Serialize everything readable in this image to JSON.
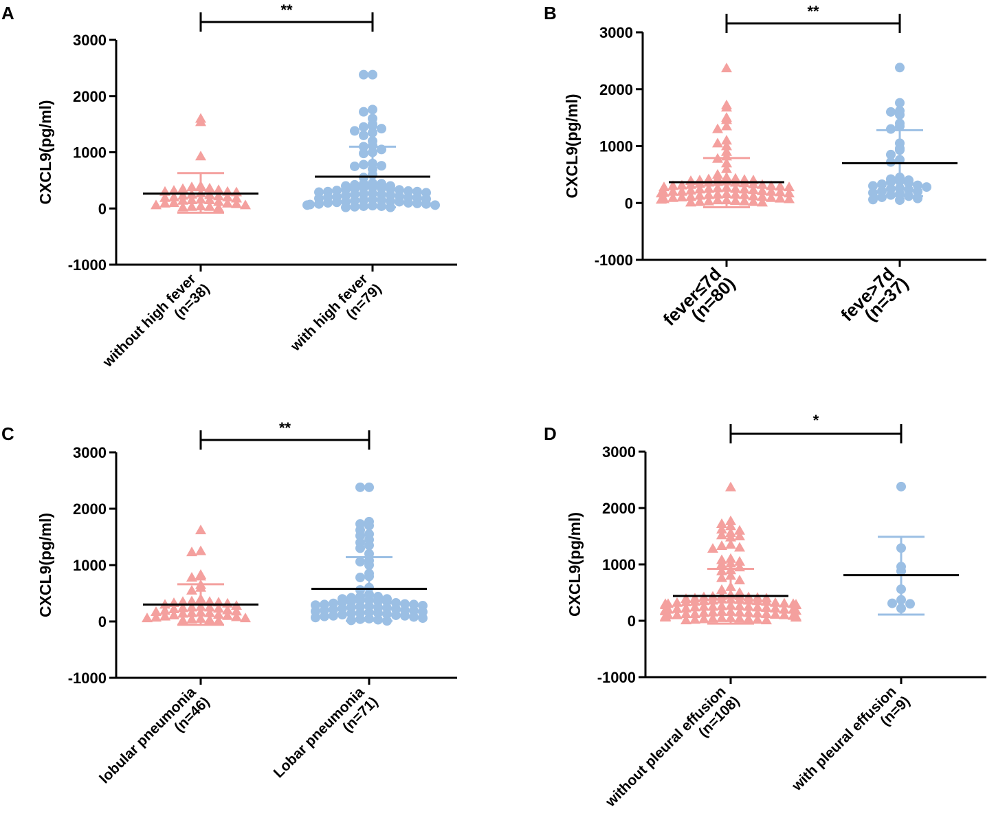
{
  "chart_data": [
    {
      "panel": "A",
      "type": "scatter",
      "ylabel": "CXCL9(pg/ml)",
      "ylim": [
        -1000,
        3000
      ],
      "yticks": [
        3000,
        2000,
        1000,
        0,
        -1000
      ],
      "groups": [
        {
          "name": "without high fever",
          "n_label": "(n=38)",
          "marker": "triangle",
          "color": "#f4a09e",
          "mean": 265,
          "sd_upper": 630,
          "sd_lower": -75,
          "points": [
            1600,
            1540,
            930,
            400,
            380,
            360,
            330,
            320,
            300,
            290,
            270,
            250,
            240,
            230,
            220,
            200,
            190,
            180,
            160,
            150,
            140,
            120,
            100,
            90,
            80,
            60,
            40,
            30,
            20,
            10,
            380,
            350,
            300,
            200,
            150,
            90,
            60,
            30
          ]
        },
        {
          "name": "with high fever",
          "n_label": "(n=79)",
          "marker": "circle",
          "color": "#9bbfe4",
          "mean": 565,
          "sd_upper": 1100,
          "sd_lower": 20,
          "points": [
            2380,
            2380,
            1760,
            1720,
            1600,
            1500,
            1470,
            1450,
            1420,
            1380,
            1350,
            1300,
            1200,
            1120,
            1100,
            1050,
            1000,
            980,
            800,
            780,
            760,
            750,
            700,
            600,
            550,
            450,
            440,
            420,
            400,
            380,
            370,
            360,
            350,
            340,
            330,
            320,
            310,
            300,
            290,
            280,
            270,
            260,
            250,
            240,
            230,
            220,
            210,
            200,
            190,
            180,
            170,
            160,
            150,
            140,
            130,
            120,
            110,
            100,
            90,
            80,
            70,
            60,
            50,
            40,
            30,
            20,
            440,
            400,
            350,
            300,
            250,
            200,
            150,
            120,
            100,
            80,
            60,
            40,
            20
          ]
        }
      ],
      "significance": "**"
    },
    {
      "panel": "B",
      "type": "scatter",
      "ylabel": "CXCL9(pg/ml)",
      "ylim": [
        -1000,
        3000
      ],
      "yticks": [
        3000,
        2000,
        1000,
        0,
        -1000
      ],
      "groups": [
        {
          "name": "fever≤7d",
          "n_label": "(n=80)",
          "marker": "triangle",
          "color": "#f4a09e",
          "mean": 365,
          "sd_upper": 790,
          "sd_lower": -75,
          "points": [
            2370,
            1720,
            1680,
            1500,
            1460,
            1350,
            1300,
            1100,
            1050,
            1000,
            900,
            820,
            780,
            700,
            600,
            500,
            450,
            430,
            420,
            410,
            400,
            390,
            380,
            370,
            360,
            350,
            340,
            330,
            320,
            310,
            300,
            290,
            280,
            270,
            260,
            250,
            240,
            230,
            220,
            210,
            200,
            190,
            180,
            170,
            160,
            150,
            140,
            130,
            120,
            110,
            100,
            90,
            80,
            70,
            60,
            50,
            40,
            30,
            20,
            10,
            430,
            400,
            360,
            320,
            280,
            240,
            200,
            170,
            140,
            110,
            90,
            70,
            50,
            30,
            20,
            10,
            300,
            250,
            200,
            150
          ]
        },
        {
          "name": "feve>7d",
          "n_label": "(n=37)",
          "marker": "circle",
          "color": "#9bbfe4",
          "mean": 700,
          "sd_upper": 1280,
          "sd_lower": 120,
          "points": [
            2380,
            1760,
            1620,
            1600,
            1550,
            1400,
            1350,
            1300,
            1050,
            960,
            930,
            850,
            760,
            720,
            450,
            420,
            400,
            380,
            370,
            350,
            330,
            310,
            300,
            280,
            260,
            250,
            230,
            210,
            200,
            180,
            160,
            140,
            120,
            100,
            80,
            60,
            50
          ]
        }
      ],
      "significance": "**"
    },
    {
      "panel": "C",
      "type": "scatter",
      "ylabel": "CXCL9(pg/ml)",
      "ylim": [
        -1000,
        3000
      ],
      "yticks": [
        3000,
        2000,
        1000,
        0,
        -1000
      ],
      "groups": [
        {
          "name": "lobular pneumonia",
          "n_label": "(n=46)",
          "marker": "triangle",
          "color": "#f4a09e",
          "mean": 300,
          "sd_upper": 660,
          "sd_lower": -60,
          "points": [
            1620,
            1250,
            1230,
            830,
            800,
            780,
            650,
            600,
            550,
            400,
            380,
            360,
            350,
            340,
            330,
            320,
            300,
            280,
            260,
            250,
            240,
            230,
            220,
            200,
            190,
            180,
            170,
            160,
            150,
            140,
            120,
            110,
            100,
            90,
            80,
            70,
            60,
            50,
            40,
            30,
            20,
            10,
            350,
            250,
            150,
            60
          ]
        },
        {
          "name": "Lobar  pneumonia",
          "n_label": "(n=71)",
          "marker": "circle",
          "color": "#9bbfe4",
          "mean": 580,
          "sd_upper": 1140,
          "sd_lower": 10,
          "points": [
            2380,
            2380,
            1770,
            1730,
            1700,
            1620,
            1550,
            1520,
            1450,
            1400,
            1350,
            1300,
            1200,
            1080,
            1060,
            1000,
            850,
            800,
            780,
            600,
            560,
            480,
            440,
            420,
            400,
            380,
            370,
            360,
            350,
            340,
            330,
            320,
            310,
            300,
            290,
            280,
            270,
            260,
            250,
            240,
            230,
            220,
            210,
            200,
            190,
            180,
            170,
            160,
            150,
            140,
            130,
            120,
            110,
            100,
            90,
            80,
            70,
            60,
            50,
            40,
            30,
            20,
            10,
            440,
            400,
            350,
            300,
            250,
            200,
            150,
            100
          ]
        }
      ],
      "significance": "**"
    },
    {
      "panel": "D",
      "type": "scatter",
      "ylabel": "CXCL9(pg/ml)",
      "ylim": [
        -1000,
        3000
      ],
      "yticks": [
        3000,
        2000,
        1000,
        0,
        -1000
      ],
      "groups": [
        {
          "name": "without pleural effusion",
          "n_label": "(n=108)",
          "marker": "triangle",
          "color": "#f4a09e",
          "mean": 440,
          "sd_upper": 920,
          "sd_lower": -50,
          "points": [
            2370,
            1770,
            1720,
            1680,
            1620,
            1600,
            1560,
            1520,
            1500,
            1480,
            1350,
            1330,
            1300,
            1280,
            1100,
            1080,
            1050,
            1020,
            1000,
            950,
            900,
            880,
            800,
            760,
            720,
            600,
            550,
            500,
            460,
            440,
            430,
            420,
            410,
            400,
            390,
            380,
            370,
            360,
            350,
            340,
            330,
            320,
            310,
            300,
            290,
            280,
            270,
            260,
            250,
            240,
            230,
            220,
            210,
            200,
            190,
            180,
            170,
            160,
            150,
            140,
            130,
            120,
            110,
            100,
            90,
            80,
            70,
            60,
            50,
            40,
            30,
            20,
            10,
            440,
            420,
            400,
            380,
            360,
            340,
            320,
            300,
            280,
            260,
            240,
            220,
            200,
            180,
            160,
            140,
            120,
            100,
            80,
            60,
            40,
            20,
            10,
            350,
            300,
            250,
            200,
            150,
            100,
            50,
            30,
            250,
            180,
            120,
            60
          ]
        },
        {
          "name": "with pleural effusion",
          "n_label": "(n=9)",
          "marker": "circle",
          "color": "#9bbfe4",
          "mean": 810,
          "sd_upper": 1490,
          "sd_lower": 110,
          "points": [
            2380,
            1290,
            960,
            880,
            560,
            370,
            300,
            220,
            310
          ]
        }
      ],
      "significance": "*"
    }
  ]
}
